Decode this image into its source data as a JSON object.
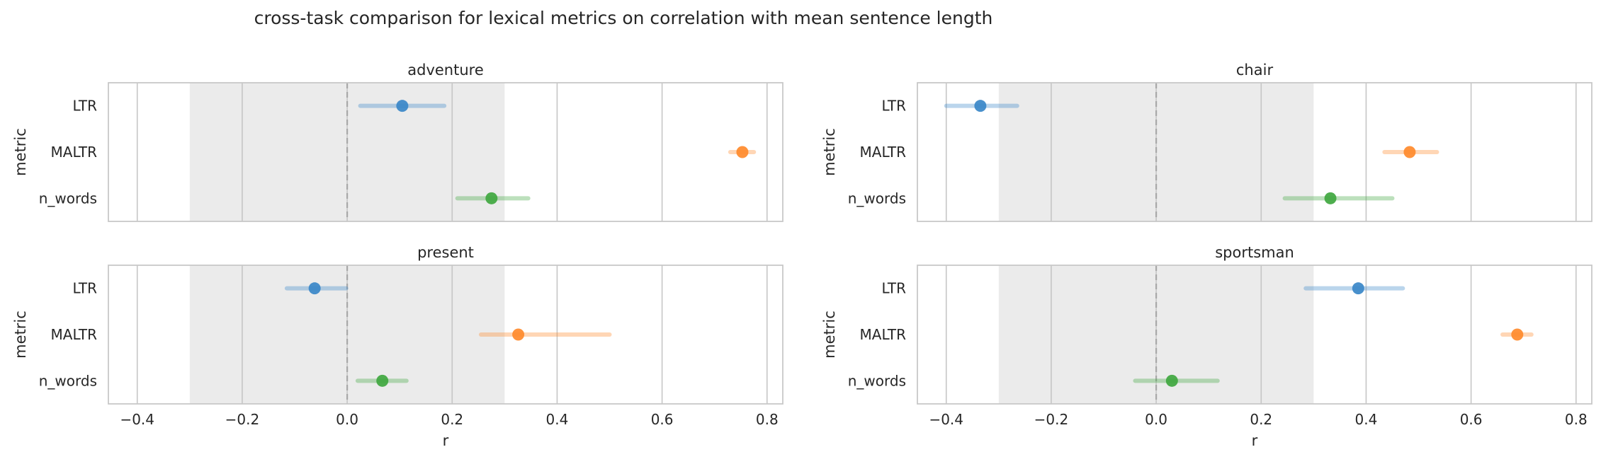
{
  "figure": {
    "title": "cross-task comparison for lexical metrics on correlation with mean sentence length"
  },
  "colors": {
    "LTR": "#3a87c8",
    "MALTR": "#ff8a2b",
    "n_words": "#3fa73f",
    "band": "#ebebeb",
    "zero_line": "#a8a8a8",
    "grid": "#c6c6c6",
    "frame": "#c8c8c8"
  },
  "chart_data": [
    {
      "type": "scatter",
      "title": "adventure",
      "xlabel": "",
      "ylabel": "metric",
      "categories": [
        "LTR",
        "MALTR",
        "n_words"
      ],
      "points": [
        {
          "metric": "LTR",
          "r": 0.105,
          "ci": [
            0.025,
            0.185
          ]
        },
        {
          "metric": "MALTR",
          "r": 0.753,
          "ci": [
            0.73,
            0.775
          ]
        },
        {
          "metric": "n_words",
          "r": 0.275,
          "ci": [
            0.21,
            0.345
          ]
        }
      ],
      "xlim": [
        -0.455,
        0.83
      ],
      "xticks": [
        -0.4,
        -0.2,
        0.0,
        0.2,
        0.4,
        0.6,
        0.8
      ],
      "show_xtick_labels": false,
      "band": [
        -0.3,
        0.3
      ],
      "reference_line": 0.0,
      "grid": true
    },
    {
      "type": "scatter",
      "title": "chair",
      "xlabel": "",
      "ylabel": "metric",
      "categories": [
        "LTR",
        "MALTR",
        "n_words"
      ],
      "points": [
        {
          "metric": "LTR",
          "r": -0.335,
          "ci": [
            -0.4,
            -0.265
          ]
        },
        {
          "metric": "MALTR",
          "r": 0.483,
          "ci": [
            0.435,
            0.535
          ]
        },
        {
          "metric": "n_words",
          "r": 0.332,
          "ci": [
            0.245,
            0.45
          ]
        }
      ],
      "xlim": [
        -0.455,
        0.83
      ],
      "xticks": [
        -0.4,
        -0.2,
        0.0,
        0.2,
        0.4,
        0.6,
        0.8
      ],
      "show_xtick_labels": false,
      "band": [
        -0.3,
        0.3
      ],
      "reference_line": 0.0,
      "grid": true
    },
    {
      "type": "scatter",
      "title": "present",
      "xlabel": "r",
      "ylabel": "metric",
      "categories": [
        "LTR",
        "MALTR",
        "n_words"
      ],
      "points": [
        {
          "metric": "LTR",
          "r": -0.062,
          "ci": [
            -0.115,
            -0.002
          ]
        },
        {
          "metric": "MALTR",
          "r": 0.326,
          "ci": [
            0.255,
            0.5
          ]
        },
        {
          "metric": "n_words",
          "r": 0.067,
          "ci": [
            0.02,
            0.113
          ]
        }
      ],
      "xlim": [
        -0.455,
        0.83
      ],
      "xticks": [
        -0.4,
        -0.2,
        0.0,
        0.2,
        0.4,
        0.6,
        0.8
      ],
      "show_xtick_labels": true,
      "band": [
        -0.3,
        0.3
      ],
      "reference_line": 0.0,
      "grid": true
    },
    {
      "type": "scatter",
      "title": "sportsman",
      "xlabel": "r",
      "ylabel": "metric",
      "categories": [
        "LTR",
        "MALTR",
        "n_words"
      ],
      "points": [
        {
          "metric": "LTR",
          "r": 0.385,
          "ci": [
            0.285,
            0.47
          ]
        },
        {
          "metric": "MALTR",
          "r": 0.688,
          "ci": [
            0.66,
            0.715
          ]
        },
        {
          "metric": "n_words",
          "r": 0.03,
          "ci": [
            -0.04,
            0.117
          ]
        }
      ],
      "xlim": [
        -0.455,
        0.83
      ],
      "xticks": [
        -0.4,
        -0.2,
        0.0,
        0.2,
        0.4,
        0.6,
        0.8
      ],
      "show_xtick_labels": true,
      "band": [
        -0.3,
        0.3
      ],
      "reference_line": 0.0,
      "grid": true
    }
  ]
}
